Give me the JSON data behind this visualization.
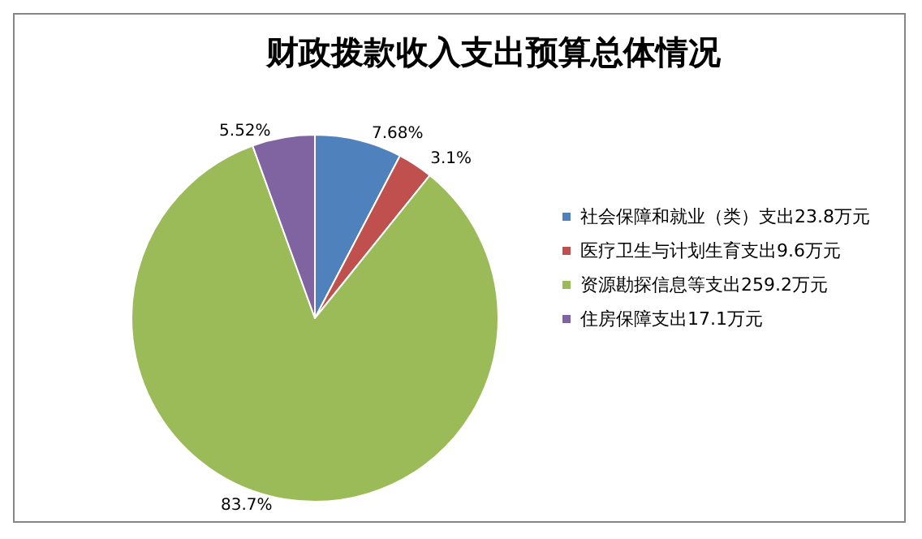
{
  "chart_data": {
    "type": "pie",
    "title": "财政拨款收入支出预算总体情况",
    "categories": [
      "社会保障和就业（类）支出23.8万元",
      "医疗卫生与计划生育支出9.6万元",
      "资源勘探信息等支出259.2万元",
      "住房保障支出17.1万元"
    ],
    "values": [
      7.68,
      3.1,
      83.7,
      5.52
    ],
    "colors": [
      "#4f81bd",
      "#c0504d",
      "#9bbb59",
      "#8064a2"
    ],
    "value_labels": [
      "7.68%",
      "3.1%",
      "83.7%",
      "5.52%"
    ],
    "legend": "right"
  }
}
